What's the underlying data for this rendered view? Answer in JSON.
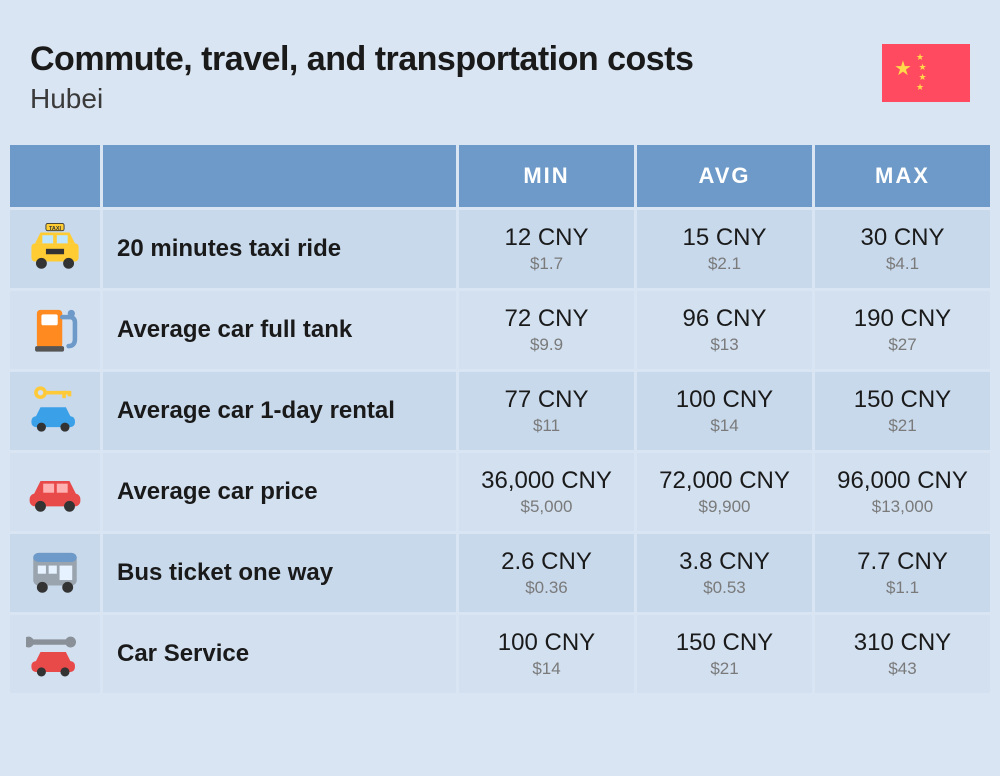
{
  "header": {
    "title": "Commute, travel, and transportation costs",
    "subtitle": "Hubei"
  },
  "flag": {
    "name": "china-flag",
    "bg": "#ff4a5f",
    "star": "#ffd94a"
  },
  "table": {
    "columns": {
      "min": "MIN",
      "avg": "AVG",
      "max": "MAX"
    },
    "header_bg": "#6d9ac8",
    "header_fg": "#ffffff",
    "row_bg_odd": "#c8d9ec",
    "row_bg_even": "#d2e0f0",
    "cny_color": "#1a1a1a",
    "usd_color": "#7a7a7a",
    "rows": [
      {
        "icon": "taxi-icon",
        "label": "20 minutes taxi ride",
        "min_cny": "12 CNY",
        "min_usd": "$1.7",
        "avg_cny": "15 CNY",
        "avg_usd": "$2.1",
        "max_cny": "30 CNY",
        "max_usd": "$4.1"
      },
      {
        "icon": "fuel-pump-icon",
        "label": "Average car full tank",
        "min_cny": "72 CNY",
        "min_usd": "$9.9",
        "avg_cny": "96 CNY",
        "avg_usd": "$13",
        "max_cny": "190 CNY",
        "max_usd": "$27"
      },
      {
        "icon": "car-rental-icon",
        "label": "Average car 1-day rental",
        "min_cny": "77 CNY",
        "min_usd": "$11",
        "avg_cny": "100 CNY",
        "avg_usd": "$14",
        "max_cny": "150 CNY",
        "max_usd": "$21"
      },
      {
        "icon": "car-icon",
        "label": "Average car price",
        "min_cny": "36,000 CNY",
        "min_usd": "$5,000",
        "avg_cny": "72,000 CNY",
        "avg_usd": "$9,900",
        "max_cny": "96,000 CNY",
        "max_usd": "$13,000"
      },
      {
        "icon": "bus-icon",
        "label": "Bus ticket one way",
        "min_cny": "2.6 CNY",
        "min_usd": "$0.36",
        "avg_cny": "3.8 CNY",
        "avg_usd": "$0.53",
        "max_cny": "7.7 CNY",
        "max_usd": "$1.1"
      },
      {
        "icon": "car-service-icon",
        "label": "Car Service",
        "min_cny": "100 CNY",
        "min_usd": "$14",
        "avg_cny": "150 CNY",
        "avg_usd": "$21",
        "max_cny": "310 CNY",
        "max_usd": "$43"
      }
    ]
  },
  "icons": {
    "taxi-icon": {
      "body": "#ffcc33",
      "accent": "#444",
      "sign": "#ffcc33"
    },
    "fuel-pump-icon": {
      "body": "#ff8a1f",
      "accent": "#6d9ac8"
    },
    "car-rental-icon": {
      "body": "#3aa0e8",
      "key": "#ffca3a"
    },
    "car-icon": {
      "body": "#e84a4a",
      "accent": "#333"
    },
    "bus-icon": {
      "body": "#9aa4ae",
      "accent": "#6d9ac8"
    },
    "car-service-icon": {
      "body": "#e84a4a",
      "wrench": "#8a9098"
    }
  }
}
